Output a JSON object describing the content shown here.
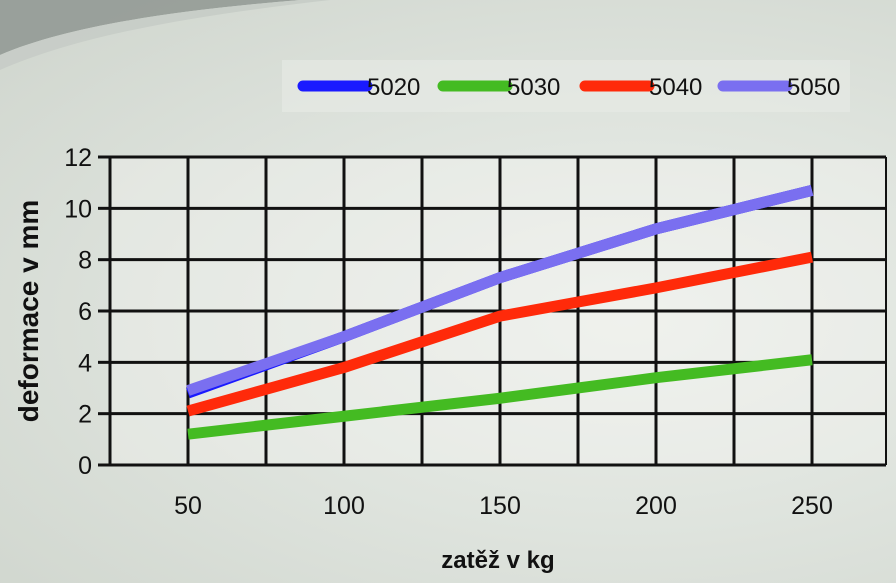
{
  "chart_data": {
    "type": "line",
    "xlabel": "zatěž v kg",
    "ylabel": "deformace v mm",
    "x": [
      50,
      100,
      150,
      200,
      250
    ],
    "xticks": [
      "50",
      "100",
      "150",
      "200",
      "250"
    ],
    "yticks": [
      "0",
      "2",
      "4",
      "6",
      "8",
      "10",
      "12"
    ],
    "ylim": [
      0,
      12
    ],
    "grid": true,
    "legend_position": "top-right",
    "series": [
      {
        "name": "5020",
        "color": "#1a1aff",
        "values": [
          2.8,
          5.0,
          7.3,
          9.2,
          10.7
        ]
      },
      {
        "name": "5030",
        "color": "#44bb22",
        "values": [
          1.2,
          1.9,
          2.6,
          3.4,
          4.1
        ]
      },
      {
        "name": "5040",
        "color": "#ff2a0a",
        "values": [
          2.1,
          3.8,
          5.8,
          6.9,
          8.1
        ]
      },
      {
        "name": "5050",
        "color": "#7a6ff0",
        "values": [
          2.9,
          5.0,
          7.3,
          9.2,
          10.7
        ]
      }
    ]
  }
}
